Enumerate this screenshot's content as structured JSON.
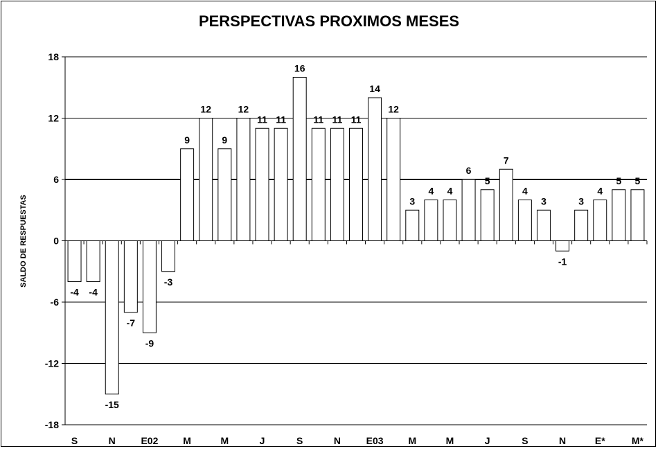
{
  "chart_data": {
    "type": "bar",
    "title": "PERSPECTIVAS PROXIMOS MESES",
    "ylabel": "SALDO DE RESPUESTAS",
    "xlabel": "",
    "ylim": [
      -18,
      18
    ],
    "yticks": [
      18,
      12,
      6,
      0,
      -6,
      -12,
      -18
    ],
    "grid": true,
    "legend": "none",
    "x_tick_labels": [
      "S",
      "N",
      "E02",
      "M",
      "M",
      "J",
      "S",
      "N",
      "E03",
      "M",
      "M",
      "J",
      "S",
      "N",
      "E*",
      "M*"
    ],
    "values": [
      -4,
      -4,
      -15,
      -7,
      -9,
      -3,
      9,
      12,
      9,
      12,
      11,
      11,
      16,
      11,
      11,
      11,
      14,
      12,
      3,
      4,
      4,
      6,
      5,
      7,
      4,
      3,
      -1,
      3,
      4,
      5,
      5
    ],
    "value_labels": [
      "-4",
      "-4",
      "-15",
      "-7",
      "-9",
      "-3",
      "9",
      "12",
      "9",
      "12",
      "11",
      "11",
      "16",
      "11",
      "11",
      "11",
      "14",
      "12",
      "3",
      "4",
      "4",
      "6",
      "5",
      "7",
      "4",
      "3",
      "-1",
      "3",
      "4",
      "5",
      "5"
    ],
    "bar_fill": "#ffffff",
    "bar_stroke": "#000000"
  }
}
